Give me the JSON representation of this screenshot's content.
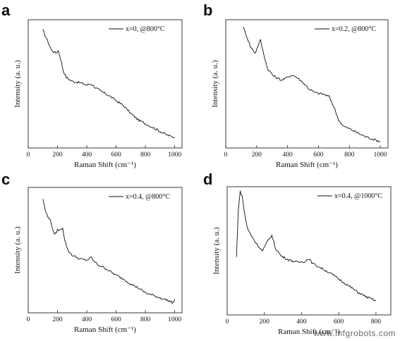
{
  "watermark": "www.mfgrobots.com",
  "chart_data": [
    {
      "panel": "a",
      "type": "line",
      "legend": "x=0, @800°C",
      "legend_placement": "top-right",
      "xlabel": "Raman Shift (cm⁻¹)",
      "ylabel": "Intensity (a. u.)",
      "xlim": [
        0,
        1050
      ],
      "ylim": [
        0,
        1
      ],
      "xticks": [
        0,
        200,
        400,
        600,
        800,
        1000
      ],
      "yticks_shown": false,
      "grid": false,
      "series": [
        {
          "x": [
            100,
            130,
            160,
            190,
            205,
            220,
            240,
            260,
            300,
            350,
            400,
            430,
            460,
            500,
            550,
            600,
            650,
            700,
            750,
            800,
            850,
            900,
            950,
            1000
          ],
          "y": [
            0.92,
            0.84,
            0.76,
            0.74,
            0.76,
            0.7,
            0.6,
            0.55,
            0.52,
            0.51,
            0.49,
            0.5,
            0.47,
            0.44,
            0.41,
            0.37,
            0.33,
            0.27,
            0.22,
            0.19,
            0.16,
            0.13,
            0.1,
            0.08
          ]
        }
      ]
    },
    {
      "panel": "b",
      "type": "line",
      "legend": "x=0.2, @800°C",
      "legend_placement": "top-right",
      "xlabel": "Raman Shift (cm⁻¹)",
      "ylabel": "Intensity (a. u.)",
      "xlim": [
        0,
        1050
      ],
      "ylim": [
        0,
        1
      ],
      "xticks": [
        0,
        200,
        400,
        600,
        800,
        1000
      ],
      "yticks_shown": false,
      "grid": false,
      "series": [
        {
          "x": [
            110,
            130,
            160,
            190,
            210,
            225,
            240,
            270,
            310,
            360,
            400,
            430,
            460,
            500,
            540,
            580,
            630,
            670,
            700,
            730,
            760,
            800,
            850,
            900,
            950,
            1000
          ],
          "y": [
            0.95,
            0.89,
            0.79,
            0.74,
            0.8,
            0.84,
            0.76,
            0.62,
            0.56,
            0.53,
            0.55,
            0.57,
            0.55,
            0.51,
            0.46,
            0.43,
            0.42,
            0.4,
            0.32,
            0.22,
            0.17,
            0.15,
            0.12,
            0.09,
            0.07,
            0.05
          ]
        }
      ]
    },
    {
      "panel": "c",
      "type": "line",
      "legend": "x=0.4, @800°C",
      "legend_placement": "top-right",
      "xlabel": "Raman Shift (cm⁻¹)",
      "ylabel": "Intensity (a. u.)",
      "xlim": [
        0,
        1050
      ],
      "ylim": [
        0,
        1
      ],
      "xticks": [
        0,
        200,
        400,
        600,
        800,
        1000
      ],
      "yticks_shown": false,
      "grid": false,
      "series": [
        {
          "x": [
            100,
            120,
            150,
            180,
            200,
            220,
            235,
            250,
            270,
            300,
            350,
            400,
            430,
            450,
            480,
            520,
            560,
            600,
            650,
            700,
            750,
            800,
            850,
            900,
            950,
            990,
            1000
          ],
          "y": [
            0.91,
            0.8,
            0.74,
            0.62,
            0.66,
            0.66,
            0.68,
            0.58,
            0.5,
            0.46,
            0.43,
            0.42,
            0.44,
            0.41,
            0.38,
            0.36,
            0.33,
            0.3,
            0.27,
            0.23,
            0.2,
            0.16,
            0.14,
            0.12,
            0.1,
            0.08,
            0.11
          ]
        }
      ]
    },
    {
      "panel": "d",
      "type": "line",
      "legend": "x=0.4, @1000°C",
      "legend_placement": "top-right",
      "xlabel": "Raman Shift (cm⁻¹)",
      "ylabel": "Intensity (a. u.)",
      "xlim": [
        0,
        880
      ],
      "ylim": [
        0,
        1
      ],
      "xticks": [
        0,
        200,
        400,
        600,
        800
      ],
      "yticks_shown": false,
      "grid": false,
      "series": [
        {
          "x": [
            50,
            60,
            70,
            80,
            95,
            110,
            130,
            160,
            190,
            220,
            240,
            260,
            290,
            330,
            380,
            420,
            440,
            460,
            500,
            550,
            600,
            650,
            700,
            750,
            800
          ],
          "y": [
            0.45,
            0.82,
            0.96,
            0.93,
            0.78,
            0.67,
            0.62,
            0.55,
            0.5,
            0.58,
            0.62,
            0.52,
            0.46,
            0.43,
            0.41,
            0.42,
            0.44,
            0.4,
            0.37,
            0.33,
            0.28,
            0.23,
            0.18,
            0.14,
            0.11
          ]
        }
      ]
    }
  ]
}
